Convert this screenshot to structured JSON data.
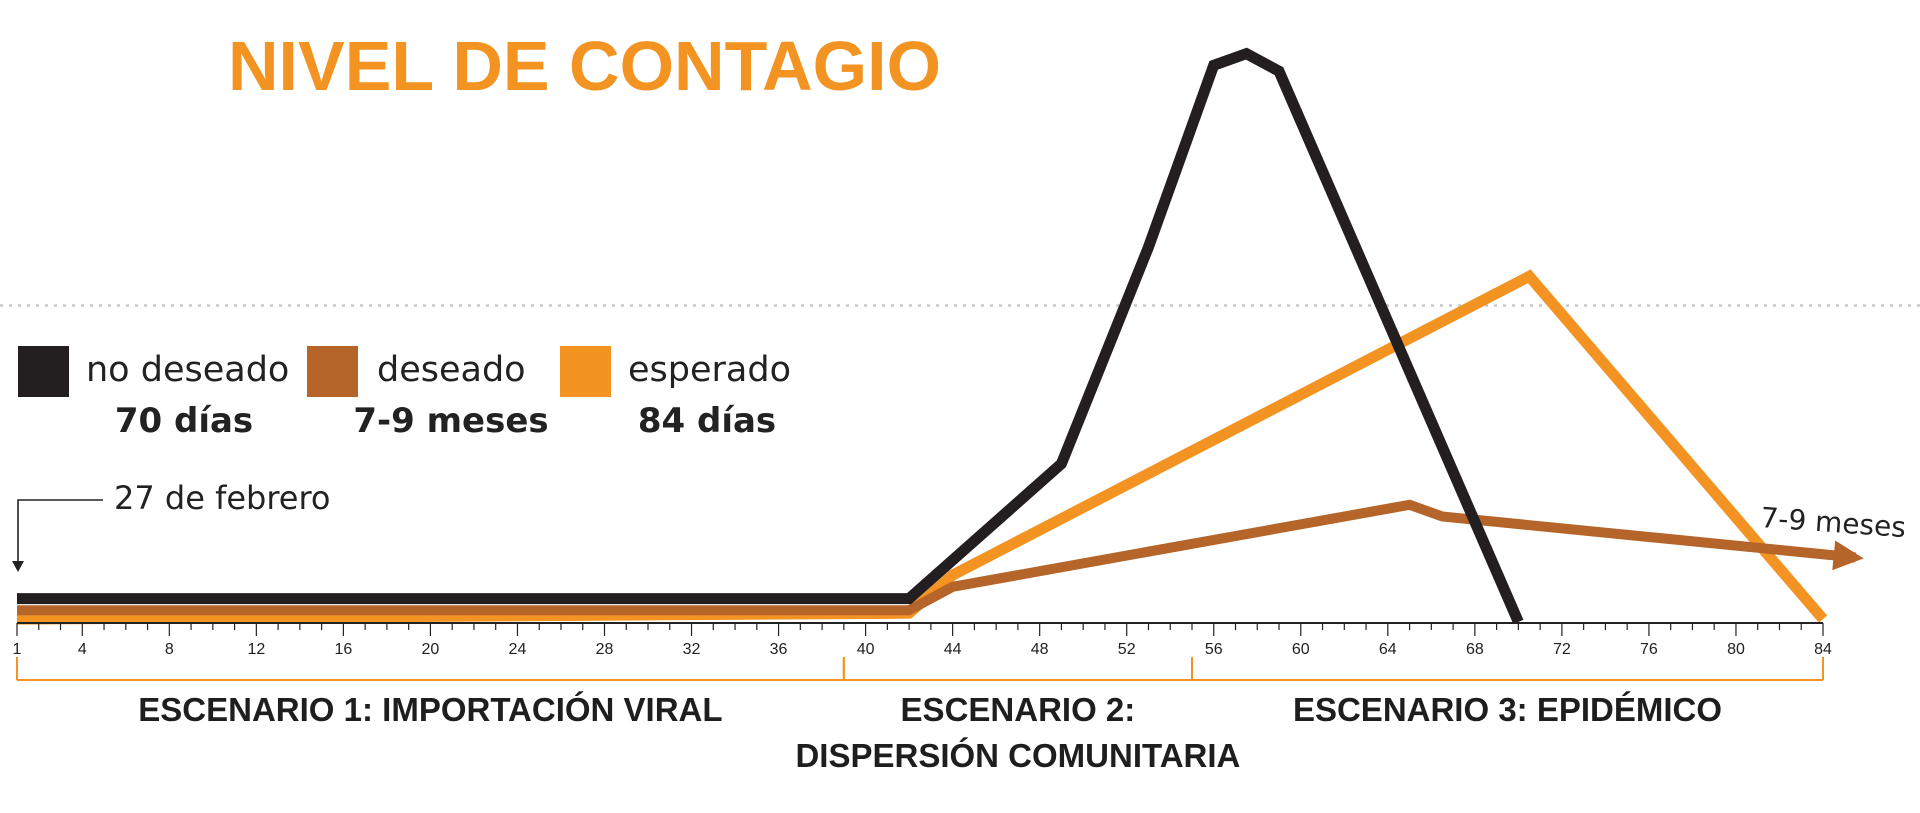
{
  "chart_data": {
    "type": "line",
    "title": "NIVEL DE CONTAGIO",
    "xlabel": "",
    "ylabel": "",
    "xlim": [
      1,
      84
    ],
    "x_ticks": [
      1,
      4,
      8,
      12,
      16,
      20,
      24,
      28,
      32,
      36,
      40,
      44,
      48,
      52,
      56,
      60,
      64,
      68,
      72,
      76,
      80,
      84
    ],
    "ylim": [
      0,
      100
    ],
    "grid": false,
    "threshold_line": 54,
    "legend_position": "left",
    "series": [
      {
        "name": "no deseado",
        "sublabel": "70 días",
        "color": "#231f20",
        "x": [
          1,
          42,
          49,
          53,
          56,
          57.5,
          59,
          70
        ],
        "y": [
          4,
          4,
          27,
          64,
          95,
          97,
          94,
          0
        ]
      },
      {
        "name": "deseado",
        "sublabel": "7-9 meses",
        "color": "#b5652a",
        "arrow": true,
        "x": [
          1,
          42,
          44,
          65,
          66.5,
          85.5
        ],
        "y": [
          2,
          2,
          6,
          20,
          18,
          11
        ]
      },
      {
        "name": "esperado",
        "sublabel": "84 días",
        "color": "#f39322",
        "x": [
          1,
          42,
          44,
          70.5,
          84
        ],
        "y": [
          0.5,
          1.5,
          8,
          59,
          0.5
        ]
      }
    ],
    "scenarios": [
      {
        "label_lines": [
          "ESCENARIO 1: IMPORTACIÓN VIRAL"
        ],
        "x_start": 1,
        "x_end": 39
      },
      {
        "label_lines": [
          "ESCENARIO 2:",
          "DISPERSIÓN COMUNITARIA"
        ],
        "x_start": 39,
        "x_end": 55
      },
      {
        "label_lines": [
          "ESCENARIO 3: EPIDÉMICO"
        ],
        "x_start": 55,
        "x_end": 84
      }
    ],
    "annotations": {
      "start_label": "27 de febrero",
      "end_label": "7-9 meses"
    }
  }
}
